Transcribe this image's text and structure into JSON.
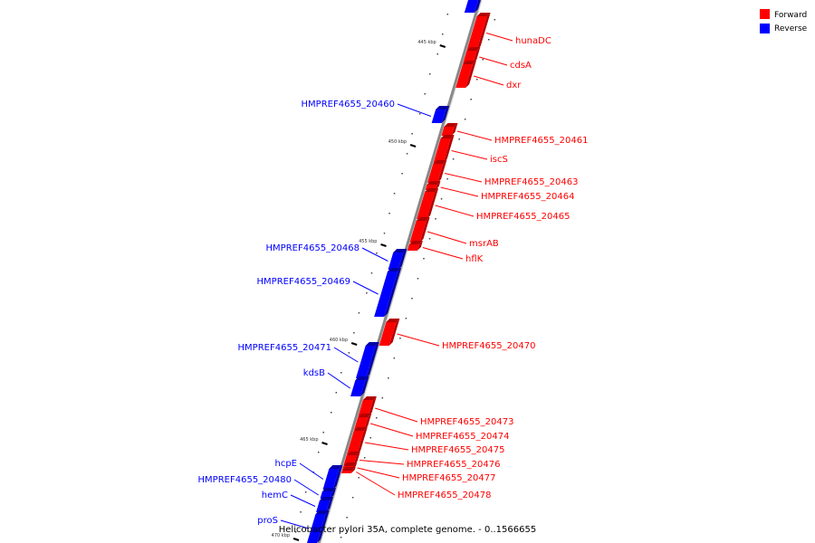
{
  "legend": {
    "items": [
      {
        "label": "Forward",
        "color": "#ff0000"
      },
      {
        "label": "Reverse",
        "color": "#0000ff"
      }
    ]
  },
  "caption": "Helicobacter pylori 35A, complete genome. - 0..1566655",
  "colors": {
    "forward": "#ff0000",
    "forward_dark": "#b30000",
    "reverse": "#0000ff",
    "reverse_dark": "#0000a8",
    "backbone": "#888888"
  },
  "ticks": [
    "445 kbp",
    "450 kbp",
    "455 kbp",
    "460 kbp",
    "465 kbp",
    "470 kbp"
  ],
  "forward_genes": [
    "hunaDC",
    "cdsA",
    "dxr",
    "HMPREF4655_20461",
    "iscS",
    "HMPREF4655_20463",
    "HMPREF4655_20464",
    "HMPREF4655_20465",
    "msrAB",
    "hflK",
    "HMPREF4655_20470",
    "HMPREF4655_20473",
    "HMPREF4655_20474",
    "HMPREF4655_20475",
    "HMPREF4655_20476",
    "HMPREF4655_20477",
    "HMPREF4655_20478"
  ],
  "reverse_genes": [
    "HMPREF4655_20460",
    "HMPREF4655_20468",
    "HMPREF4655_20469",
    "HMPREF4655_20471",
    "kdsB",
    "hcpE",
    "HMPREF4655_20480",
    "hemC",
    "proS"
  ]
}
